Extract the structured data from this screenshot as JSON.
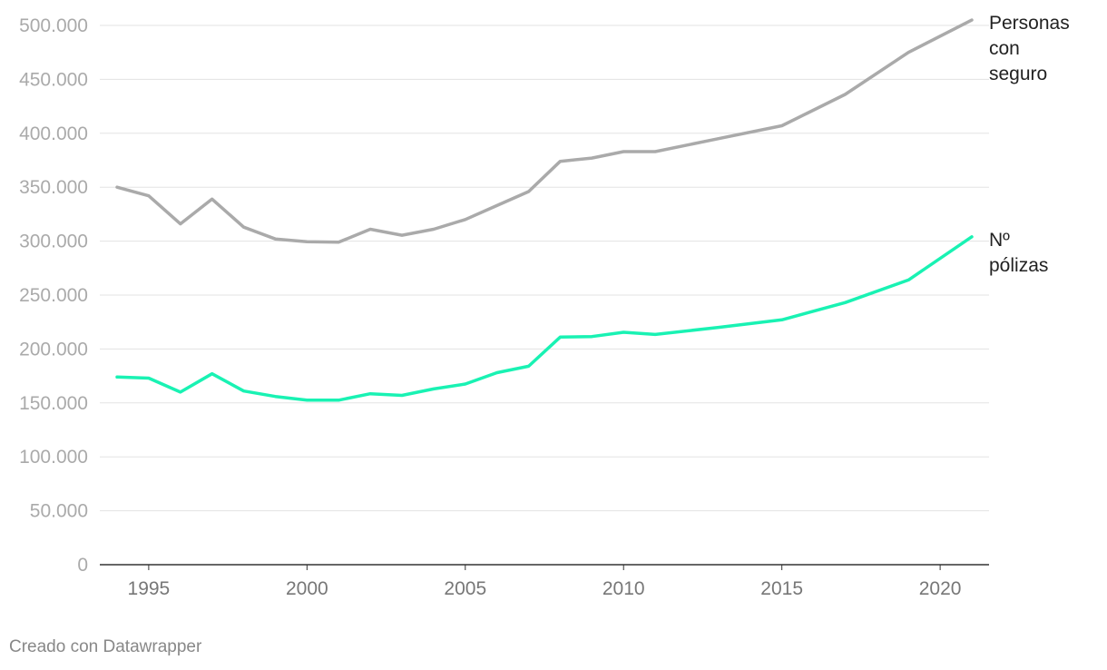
{
  "footer": {
    "credit": "Creado con Datawrapper"
  },
  "chart_data": {
    "type": "line",
    "title": "",
    "xlabel": "",
    "ylabel": "",
    "xlim": [
      1994,
      2021
    ],
    "ylim": [
      0,
      500000
    ],
    "grid": true,
    "legend": "inline labels at right end of lines",
    "y_ticks": [
      {
        "value": 0,
        "label": "0"
      },
      {
        "value": 50000,
        "label": "50.000"
      },
      {
        "value": 100000,
        "label": "100.000"
      },
      {
        "value": 150000,
        "label": "150.000"
      },
      {
        "value": 200000,
        "label": "200.000"
      },
      {
        "value": 250000,
        "label": "250.000"
      },
      {
        "value": 300000,
        "label": "300.000"
      },
      {
        "value": 350000,
        "label": "350.000"
      },
      {
        "value": 400000,
        "label": "400.000"
      },
      {
        "value": 450000,
        "label": "450.000"
      },
      {
        "value": 500000,
        "label": "500.000"
      }
    ],
    "x_ticks": [
      {
        "value": 1995,
        "label": "1995"
      },
      {
        "value": 2000,
        "label": "2000"
      },
      {
        "value": 2005,
        "label": "2005"
      },
      {
        "value": 2010,
        "label": "2010"
      },
      {
        "value": 2015,
        "label": "2015"
      },
      {
        "value": 2020,
        "label": "2020"
      }
    ],
    "series": [
      {
        "name": "Personas con seguro",
        "label_lines": [
          "Personas",
          "con",
          "seguro"
        ],
        "color": "#aaaaaa",
        "x": [
          1994,
          1995,
          1996,
          1997,
          1998,
          1999,
          2000,
          2001,
          2002,
          2003,
          2004,
          2005,
          2006,
          2007,
          2008,
          2009,
          2010,
          2011,
          2013,
          2015,
          2017,
          2019,
          2021
        ],
        "y": [
          350000,
          342000,
          316000,
          339000,
          313000,
          302000,
          299500,
          299000,
          311000,
          305500,
          311000,
          320000,
          333000,
          346000,
          374000,
          377000,
          383000,
          383000,
          395000,
          407000,
          436000,
          475000,
          505000
        ]
      },
      {
        "name": "Nº pólizas",
        "label_lines": [
          "Nº",
          "pólizas"
        ],
        "color": "#19f2b3",
        "x": [
          1994,
          1995,
          1996,
          1997,
          1998,
          1999,
          2000,
          2001,
          2002,
          2003,
          2004,
          2005,
          2006,
          2007,
          2008,
          2009,
          2010,
          2011,
          2013,
          2015,
          2017,
          2019,
          2021
        ],
        "y": [
          174000,
          173000,
          160000,
          177000,
          161000,
          156000,
          152500,
          152500,
          158500,
          157000,
          163000,
          167500,
          178000,
          184000,
          211000,
          211500,
          215500,
          213500,
          220000,
          227000,
          243000,
          264000,
          304000
        ]
      }
    ]
  }
}
